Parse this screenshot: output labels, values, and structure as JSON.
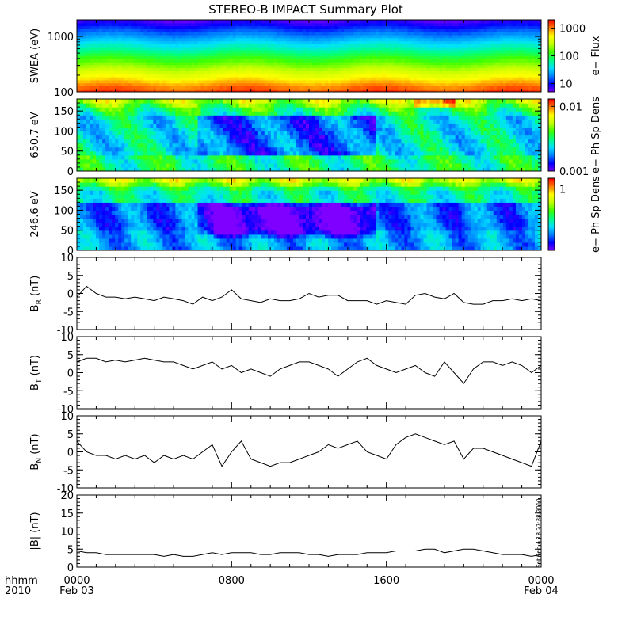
{
  "title": "STEREO-B IMPACT Summary Plot",
  "time_axis": {
    "left_labels": [
      "hhmm",
      "2010"
    ],
    "ticks": [
      {
        "hour": 0,
        "time": "0000",
        "date": "Feb 03"
      },
      {
        "hour": 8,
        "time": "0800",
        "date": ""
      },
      {
        "hour": 16,
        "time": "1600",
        "date": ""
      },
      {
        "hour": 24,
        "time": "0000",
        "date": "Feb 04"
      }
    ],
    "range_hours": [
      0,
      24
    ]
  },
  "footnote": "Sat Sep  4 18:27:38 2010",
  "colors": {
    "line": "#000000",
    "colorscale": [
      "#7f00ff",
      "#0000ff",
      "#0080ff",
      "#00e0ff",
      "#00ff80",
      "#40ff00",
      "#c0ff00",
      "#ffff00",
      "#ff8000",
      "#ff0000"
    ]
  },
  "chart_data": [
    {
      "type": "heatmap",
      "ylabel": "SWEA (eV)",
      "yscale": "log",
      "ylim": [
        100,
        2000
      ],
      "yticks": [
        100,
        1000
      ],
      "colorbar": {
        "label": "e− Flux",
        "scale": "log",
        "range": [
          5,
          2000
        ],
        "ticks": [
          10,
          100,
          1000
        ]
      },
      "z_description": "energy_gradient"
    },
    {
      "type": "heatmap",
      "ylabel": "650.7 eV",
      "ylim": [
        0,
        180
      ],
      "yticks": [
        0,
        50,
        100,
        150
      ],
      "colorbar": {
        "label": "e− Ph Sp Dens",
        "scale": "log",
        "range": [
          0.001,
          0.013
        ],
        "ticks": [
          0.001,
          0.01
        ]
      },
      "z_description": "pitch_angle"
    },
    {
      "type": "heatmap",
      "ylabel": "246.6 eV",
      "ylim": [
        0,
        180
      ],
      "yticks": [
        0,
        50,
        100,
        150
      ],
      "colorbar": {
        "label": "e− Ph Sp Dens",
        "scale": "log",
        "range": [
          0.1,
          1.5
        ],
        "ticks": [
          1
        ]
      },
      "z_description": "pitch_angle"
    },
    {
      "type": "line",
      "ylabel": "B_R (nT)",
      "ylim": [
        -10,
        10
      ],
      "yticks": [
        -10,
        -5,
        0,
        5,
        10
      ],
      "x": [
        0,
        0.5,
        1,
        1.5,
        2,
        2.5,
        3,
        3.5,
        4,
        4.5,
        5,
        5.5,
        6,
        6.5,
        7,
        7.5,
        8,
        8.5,
        9,
        9.5,
        10,
        10.5,
        11,
        11.5,
        12,
        12.5,
        13,
        13.5,
        14,
        14.5,
        15,
        15.5,
        16,
        16.5,
        17,
        17.5,
        18,
        18.5,
        19,
        19.5,
        20,
        20.5,
        21,
        21.5,
        22,
        22.5,
        23,
        23.5,
        24
      ],
      "y": [
        -1,
        2,
        0,
        -1,
        -1,
        -1.5,
        -1,
        -1.5,
        -2,
        -1,
        -1.5,
        -2,
        -3,
        -1,
        -2,
        -1,
        1,
        -1.5,
        -2,
        -2.5,
        -1.5,
        -2,
        -2,
        -1.5,
        0,
        -1,
        -0.5,
        -0.5,
        -2,
        -2,
        -2,
        -3,
        -2,
        -2.5,
        -3,
        -0.5,
        0,
        -1,
        -1.5,
        0,
        -2.5,
        -3,
        -3,
        -2,
        -2,
        -1.5,
        -2,
        -1.5,
        -2
      ]
    },
    {
      "type": "line",
      "ylabel": "B_T (nT)",
      "ylim": [
        -10,
        10
      ],
      "yticks": [
        -10,
        -5,
        0,
        5,
        10
      ],
      "x": [
        0,
        0.5,
        1,
        1.5,
        2,
        2.5,
        3,
        3.5,
        4,
        4.5,
        5,
        5.5,
        6,
        6.5,
        7,
        7.5,
        8,
        8.5,
        9,
        9.5,
        10,
        10.5,
        11,
        11.5,
        12,
        12.5,
        13,
        13.5,
        14,
        14.5,
        15,
        15.5,
        16,
        16.5,
        17,
        17.5,
        18,
        18.5,
        19,
        19.5,
        20,
        20.5,
        21,
        21.5,
        22,
        22.5,
        23,
        23.5,
        24
      ],
      "y": [
        3,
        4,
        4,
        3,
        3.5,
        3,
        3.5,
        4,
        3.5,
        3,
        3,
        2,
        1,
        2,
        3,
        1,
        2,
        0,
        1,
        0,
        -1,
        1,
        2,
        3,
        3,
        2,
        1,
        -1,
        1,
        3,
        4,
        2,
        1,
        0,
        1,
        2,
        0,
        -1,
        3,
        0,
        -3,
        1,
        3,
        3,
        2,
        3,
        2,
        0,
        2
      ]
    },
    {
      "type": "line",
      "ylabel": "B_N (nT)",
      "ylim": [
        -10,
        10
      ],
      "yticks": [
        -10,
        -5,
        0,
        5,
        10
      ],
      "x": [
        0,
        0.5,
        1,
        1.5,
        2,
        2.5,
        3,
        3.5,
        4,
        4.5,
        5,
        5.5,
        6,
        6.5,
        7,
        7.5,
        8,
        8.5,
        9,
        9.5,
        10,
        10.5,
        11,
        11.5,
        12,
        12.5,
        13,
        13.5,
        14,
        14.5,
        15,
        15.5,
        16,
        16.5,
        17,
        17.5,
        18,
        18.5,
        19,
        19.5,
        20,
        20.5,
        21,
        21.5,
        22,
        22.5,
        23,
        23.5,
        24
      ],
      "y": [
        3,
        0,
        -1,
        -1,
        -2,
        -1,
        -2,
        -1,
        -3,
        -1,
        -2,
        -1,
        -2,
        0,
        2,
        -4,
        0,
        3,
        -2,
        -3,
        -4,
        -3,
        -3,
        -2,
        -1,
        0,
        2,
        1,
        2,
        3,
        0,
        -1,
        -2,
        2,
        4,
        5,
        4,
        3,
        2,
        3,
        -2,
        1,
        1,
        0,
        -1,
        -2,
        -3,
        -4,
        3
      ]
    },
    {
      "type": "line",
      "ylabel": "|B| (nT)",
      "ylim": [
        0,
        20
      ],
      "yticks": [
        0,
        5,
        10,
        15,
        20
      ],
      "x": [
        0,
        0.5,
        1,
        1.5,
        2,
        2.5,
        3,
        3.5,
        4,
        4.5,
        5,
        5.5,
        6,
        6.5,
        7,
        7.5,
        8,
        8.5,
        9,
        9.5,
        10,
        10.5,
        11,
        11.5,
        12,
        12.5,
        13,
        13.5,
        14,
        14.5,
        15,
        15.5,
        16,
        16.5,
        17,
        17.5,
        18,
        18.5,
        19,
        19.5,
        20,
        20.5,
        21,
        21.5,
        22,
        22.5,
        23,
        23.5,
        24
      ],
      "y": [
        4.5,
        4,
        4,
        3.5,
        3.5,
        3.5,
        3.5,
        3.5,
        3.5,
        3,
        3.5,
        3,
        3,
        3.5,
        4,
        3.5,
        4,
        4,
        4,
        3.5,
        3.5,
        4,
        4,
        4,
        3.5,
        3.5,
        3,
        3.5,
        3.5,
        3.5,
        4,
        4,
        4,
        4.5,
        4.5,
        4.5,
        5,
        5,
        4,
        4.5,
        5,
        5,
        4.5,
        4,
        3.5,
        3.5,
        3.5,
        3,
        3.5
      ]
    }
  ]
}
